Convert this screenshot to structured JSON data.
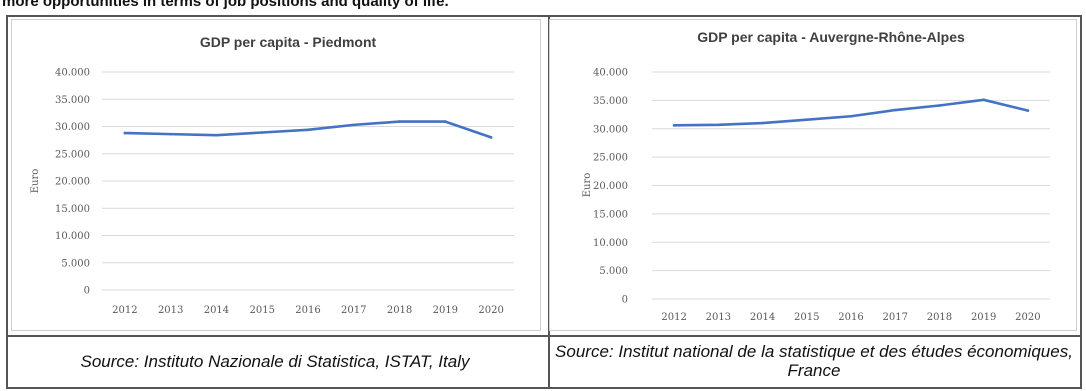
{
  "header_text": "more opportunities in terms of job positions and quality of life.",
  "colors": {
    "line": "#4472C4",
    "grid": "#d9d9d9",
    "axis_text": "#595959",
    "title_text": "#404040"
  },
  "chart_data": [
    {
      "type": "line",
      "title": "GDP per capita - Piedmont",
      "ylabel": "Euro",
      "xlabel": "",
      "x": [
        "2012",
        "2013",
        "2014",
        "2015",
        "2016",
        "2017",
        "2018",
        "2019",
        "2020"
      ],
      "series": [
        {
          "values": [
            28800,
            28600,
            28400,
            28900,
            29400,
            30300,
            30900,
            30900,
            28000
          ]
        }
      ],
      "ylim": [
        0,
        40000
      ],
      "yticks": [
        "0",
        "5.000",
        "10.000",
        "15.000",
        "20.000",
        "25.000",
        "30.000",
        "35.000",
        "40.000"
      ],
      "grid": true
    },
    {
      "type": "line",
      "title": "GDP per capita - Auvergne-Rhône-Alpes",
      "ylabel": "Euro",
      "xlabel": "",
      "x": [
        "2012",
        "2013",
        "2014",
        "2015",
        "2016",
        "2017",
        "2018",
        "2019",
        "2020"
      ],
      "series": [
        {
          "values": [
            30600,
            30700,
            31000,
            31600,
            32200,
            33300,
            34100,
            35100,
            33200
          ]
        }
      ],
      "ylim": [
        0,
        40000
      ],
      "yticks": [
        "0",
        "5.000",
        "10.000",
        "15.000",
        "20.000",
        "25.000",
        "30.000",
        "35.000",
        "40.000"
      ],
      "grid": true
    }
  ],
  "sources": [
    "Source: Instituto Nazionale di Statistica, ISTAT, Italy",
    "Source: Institut national de la statistique et des études économiques, France"
  ]
}
